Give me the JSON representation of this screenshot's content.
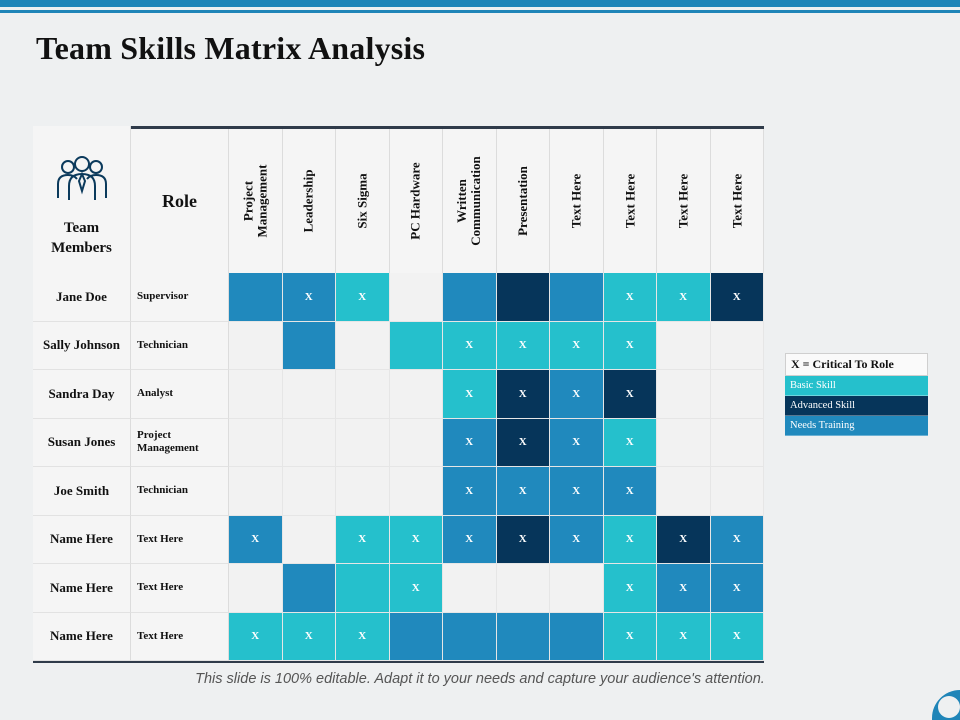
{
  "title": "Team Skills Matrix Analysis",
  "header": {
    "team_members": "Team Members",
    "role": "Role",
    "skills": [
      "Project Management",
      "Leadership",
      "Six Sigma",
      "PC Hardware",
      "Written Communication",
      "Presentation",
      "Text Here",
      "Text Here",
      "Text Here",
      "Text Here"
    ]
  },
  "rows": [
    {
      "name": "Jane Doe",
      "role": "Supervisor",
      "cells": [
        [
          "need",
          ""
        ],
        [
          "need",
          "X"
        ],
        [
          "basic",
          "X"
        ],
        [
          "empty",
          ""
        ],
        [
          "need",
          ""
        ],
        [
          "adv",
          ""
        ],
        [
          "need",
          ""
        ],
        [
          "basic",
          "X"
        ],
        [
          "basic",
          "X"
        ],
        [
          "adv",
          "X"
        ]
      ]
    },
    {
      "name": "Sally Johnson",
      "role": "Technician",
      "cells": [
        [
          "empty",
          ""
        ],
        [
          "need",
          ""
        ],
        [
          "empty",
          ""
        ],
        [
          "basic",
          ""
        ],
        [
          "basic",
          "X"
        ],
        [
          "basic",
          "X"
        ],
        [
          "basic",
          "X"
        ],
        [
          "basic",
          "X"
        ],
        [
          "empty",
          ""
        ],
        [
          "empty",
          ""
        ]
      ]
    },
    {
      "name": "Sandra Day",
      "role": "Analyst",
      "cells": [
        [
          "empty",
          ""
        ],
        [
          "empty",
          ""
        ],
        [
          "empty",
          ""
        ],
        [
          "empty",
          ""
        ],
        [
          "basic",
          "X"
        ],
        [
          "adv",
          "X"
        ],
        [
          "need",
          "X"
        ],
        [
          "adv",
          "X"
        ],
        [
          "empty",
          ""
        ],
        [
          "empty",
          ""
        ]
      ]
    },
    {
      "name": "Susan Jones",
      "role": "Project Management",
      "cells": [
        [
          "empty",
          ""
        ],
        [
          "empty",
          ""
        ],
        [
          "empty",
          ""
        ],
        [
          "empty",
          ""
        ],
        [
          "need",
          "X"
        ],
        [
          "adv",
          "X"
        ],
        [
          "need",
          "X"
        ],
        [
          "basic",
          "X"
        ],
        [
          "empty",
          ""
        ],
        [
          "empty",
          ""
        ]
      ]
    },
    {
      "name": "Joe Smith",
      "role": "Technician",
      "cells": [
        [
          "empty",
          ""
        ],
        [
          "empty",
          ""
        ],
        [
          "empty",
          ""
        ],
        [
          "empty",
          ""
        ],
        [
          "need",
          "X"
        ],
        [
          "need",
          "X"
        ],
        [
          "need",
          "X"
        ],
        [
          "need",
          "X"
        ],
        [
          "empty",
          ""
        ],
        [
          "empty",
          ""
        ]
      ]
    },
    {
      "name": "Name Here",
      "role": "Text Here",
      "cells": [
        [
          "need",
          "X"
        ],
        [
          "empty",
          ""
        ],
        [
          "basic",
          "X"
        ],
        [
          "basic",
          "X"
        ],
        [
          "need",
          "X"
        ],
        [
          "adv",
          "X"
        ],
        [
          "need",
          "X"
        ],
        [
          "basic",
          "X"
        ],
        [
          "adv",
          "X"
        ],
        [
          "need",
          "X"
        ]
      ]
    },
    {
      "name": "Name Here",
      "role": "Text Here",
      "cells": [
        [
          "empty",
          ""
        ],
        [
          "need",
          ""
        ],
        [
          "basic",
          ""
        ],
        [
          "basic",
          "X"
        ],
        [
          "empty",
          ""
        ],
        [
          "empty",
          ""
        ],
        [
          "empty",
          ""
        ],
        [
          "basic",
          "X"
        ],
        [
          "need",
          "X"
        ],
        [
          "need",
          "X"
        ]
      ]
    },
    {
      "name": "Name Here",
      "role": "Text Here",
      "cells": [
        [
          "basic",
          "X"
        ],
        [
          "basic",
          "X"
        ],
        [
          "basic",
          "X"
        ],
        [
          "need",
          ""
        ],
        [
          "need",
          ""
        ],
        [
          "need",
          ""
        ],
        [
          "need",
          ""
        ],
        [
          "basic",
          "X"
        ],
        [
          "basic",
          "X"
        ],
        [
          "basic",
          "X"
        ]
      ]
    }
  ],
  "legend": {
    "title": "X = Critical To Role",
    "items": [
      {
        "label": "Basic Skill",
        "color": "#25c0cc"
      },
      {
        "label": "Advanced Skill",
        "color": "#06355a"
      },
      {
        "label": "Needs Training",
        "color": "#2089bd"
      }
    ]
  },
  "footer": "This slide is 100% editable. Adapt it to your needs and capture your audience's attention.",
  "icons": {
    "team": "team-members-icon"
  }
}
